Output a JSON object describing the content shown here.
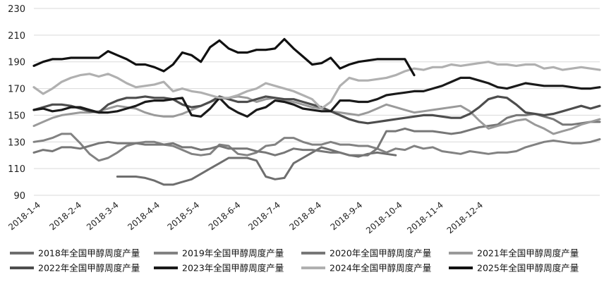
{
  "chart_data": {
    "type": "line",
    "title": "",
    "xlabel": "",
    "ylabel": "",
    "ylim": [
      90,
      230
    ],
    "yticks": [
      90,
      110,
      130,
      150,
      170,
      190,
      210,
      230
    ],
    "x_ticks": [
      "2018-1-4",
      "2018-2-4",
      "2018-3-4",
      "2018-4-4",
      "2018-5-4",
      "2018-6-4",
      "2018-7-4",
      "2018-8-4",
      "2018-9-4",
      "2018-10-4",
      "2018-11-4",
      "2018-12-4"
    ],
    "grid": "horizontal",
    "legend_position": "bottom",
    "series": [
      {
        "name": "2018年全国甲醇周度产量",
        "color": "#6e6e6e",
        "start_week": 9,
        "values": [
          104,
          104,
          104,
          103,
          101,
          98,
          98,
          100,
          102,
          106,
          110,
          114,
          118,
          118,
          118,
          116,
          104,
          102,
          103,
          114,
          118,
          122,
          126,
          124,
          122,
          120,
          119,
          121,
          122,
          121,
          120
        ]
      },
      {
        "name": "2019年全国甲醇周度产量",
        "color": "#828282",
        "start_week": 0,
        "values": [
          130,
          131,
          133,
          136,
          136,
          129,
          121,
          116,
          118,
          122,
          127,
          129,
          130,
          130,
          128,
          127,
          124,
          121,
          120,
          121,
          128,
          127,
          121,
          120,
          122,
          127,
          128,
          133,
          133,
          130,
          128,
          128,
          130,
          128,
          128,
          127,
          127,
          125,
          122,
          125,
          124,
          127,
          125,
          126,
          123,
          122,
          121,
          123,
          122,
          121,
          122,
          122,
          123,
          126,
          128,
          130,
          131,
          130,
          129,
          129,
          130,
          132
        ]
      },
      {
        "name": "2020年全国甲醇周度产量",
        "color": "#777777",
        "start_week": 0,
        "values": [
          122,
          124,
          123,
          126,
          126,
          125,
          127,
          129,
          130,
          129,
          129,
          129,
          128,
          128,
          128,
          129,
          126,
          126,
          124,
          125,
          127,
          125,
          125,
          125,
          123,
          122,
          120,
          122,
          125,
          124,
          124,
          123,
          122,
          122,
          120,
          120,
          120,
          125,
          138,
          138,
          140,
          138,
          138,
          138,
          137,
          136,
          137,
          139,
          141,
          142,
          143,
          148,
          150,
          150,
          151,
          149,
          147,
          143,
          143,
          144,
          145,
          145
        ]
      },
      {
        "name": "2021年全国甲醇周度产量",
        "color": "#9a9a9a",
        "start_week": 0,
        "values": [
          142,
          145,
          148,
          150,
          151,
          152,
          152,
          153,
          155,
          157,
          156,
          155,
          152,
          150,
          149,
          149,
          151,
          154,
          157,
          160,
          162,
          163,
          164,
          163,
          160,
          162,
          163,
          161,
          160,
          158,
          156,
          155,
          153,
          152,
          151,
          150,
          152,
          155,
          158,
          156,
          154,
          152,
          153,
          154,
          155,
          156,
          157,
          153,
          146,
          140,
          142,
          144,
          146,
          147,
          143,
          140,
          136,
          138,
          140,
          143,
          145,
          147
        ]
      },
      {
        "name": "2022年全国甲醇周度产量",
        "color": "#4d4d4d",
        "start_week": 0,
        "values": [
          154,
          156,
          158,
          158,
          157,
          155,
          153,
          152,
          158,
          161,
          163,
          163,
          164,
          163,
          163,
          162,
          158,
          156,
          157,
          160,
          164,
          162,
          160,
          160,
          162,
          164,
          163,
          162,
          162,
          160,
          158,
          156,
          153,
          150,
          147,
          145,
          144,
          145,
          146,
          147,
          148,
          149,
          150,
          150,
          149,
          148,
          148,
          151,
          156,
          162,
          164,
          163,
          158,
          152,
          151,
          150,
          151,
          153,
          155,
          157,
          155,
          157
        ]
      },
      {
        "name": "2023年全国甲醇周度产量",
        "color": "#1a1a1a",
        "start_week": 0,
        "values": [
          154,
          155,
          153,
          154,
          156,
          156,
          154,
          152,
          152,
          153,
          155,
          157,
          160,
          161,
          161,
          162,
          163,
          150,
          149,
          155,
          163,
          156,
          152,
          149,
          154,
          156,
          161,
          160,
          158,
          155,
          154,
          153,
          153,
          161,
          161,
          160,
          160,
          162,
          165,
          166,
          167,
          168,
          168,
          170,
          172,
          175,
          178,
          178,
          176,
          174,
          171,
          170,
          172,
          174,
          173,
          172,
          172,
          172,
          171,
          170,
          170,
          171
        ]
      },
      {
        "name": "2024年全国甲醇周度产量",
        "color": "#b0b0b0",
        "start_week": 0,
        "values": [
          171,
          166,
          170,
          175,
          178,
          180,
          181,
          179,
          181,
          178,
          174,
          171,
          172,
          173,
          175,
          168,
          170,
          168,
          167,
          165,
          163,
          163,
          165,
          168,
          170,
          174,
          172,
          170,
          168,
          165,
          162,
          155,
          160,
          172,
          178,
          176,
          176,
          177,
          178,
          180,
          183,
          185,
          184,
          186,
          186,
          188,
          187,
          188,
          189,
          190,
          188,
          188,
          187,
          188,
          188,
          185,
          186,
          184,
          185,
          186,
          185,
          184
        ]
      },
      {
        "name": "2025年全国甲醇周度产量",
        "color": "#111111",
        "start_week": 0,
        "values": [
          187,
          190,
          192,
          192,
          193,
          193,
          193,
          193,
          198,
          195,
          192,
          188,
          188,
          186,
          183,
          188,
          197,
          195,
          190,
          201,
          206,
          200,
          197,
          197,
          199,
          199,
          200,
          207,
          200,
          194,
          188,
          189,
          193,
          185,
          188,
          190,
          191,
          192,
          192,
          192,
          192,
          180
        ]
      }
    ]
  }
}
